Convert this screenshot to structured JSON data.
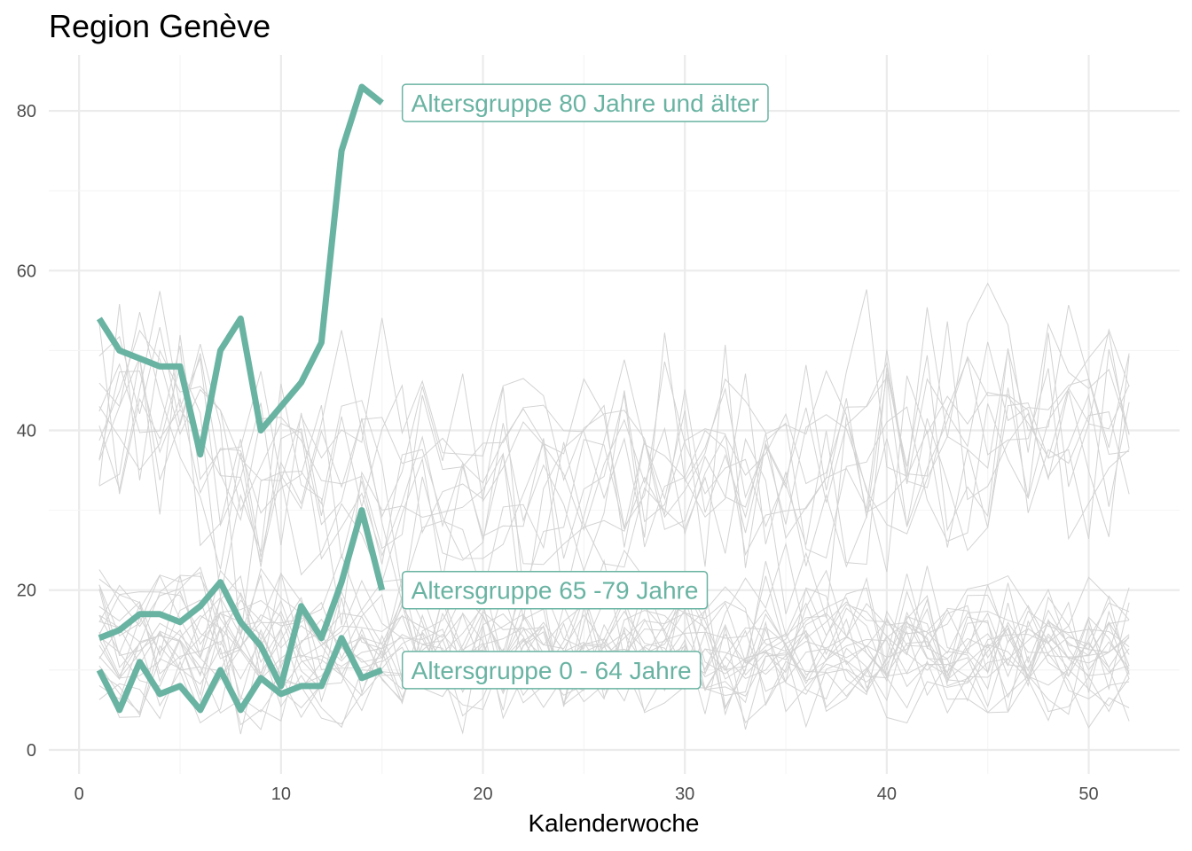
{
  "chart_data": {
    "type": "line",
    "title": "Region Genève",
    "xlabel": "Kalenderwoche",
    "ylabel": "",
    "xlim": [
      -1.5,
      54.5
    ],
    "ylim": [
      -3,
      87
    ],
    "xticks": [
      0,
      10,
      20,
      30,
      40,
      50
    ],
    "yticks": [
      0,
      20,
      40,
      60,
      80
    ],
    "grid": true,
    "legend": "none",
    "colors": {
      "highlight": "#69b3a2",
      "background_lines": "#d3d3d3",
      "grid_major": "#ebebeb",
      "grid_minor": "#f4f4f4"
    },
    "highlight_series": [
      {
        "name": "Altersgruppe 80 Jahre und älter",
        "x": [
          1,
          2,
          3,
          4,
          5,
          6,
          7,
          8,
          9,
          10,
          11,
          12,
          13,
          14,
          15
        ],
        "values": [
          54,
          50,
          49,
          48,
          48,
          37,
          50,
          54,
          40,
          43,
          46,
          51,
          75,
          83,
          81
        ]
      },
      {
        "name": "Altersgruppe 65 -79 Jahre",
        "x": [
          1,
          2,
          3,
          4,
          5,
          6,
          7,
          8,
          9,
          10,
          11,
          12,
          13,
          14,
          15
        ],
        "values": [
          14,
          15,
          17,
          17,
          16,
          18,
          21,
          16,
          13,
          8,
          18,
          14,
          21,
          30,
          20
        ]
      },
      {
        "name": "Altersgruppe 0 - 64 Jahre",
        "x": [
          1,
          2,
          3,
          4,
          5,
          6,
          7,
          8,
          9,
          10,
          11,
          12,
          13,
          14,
          15
        ],
        "values": [
          10,
          5,
          11,
          7,
          8,
          5,
          10,
          5,
          9,
          7,
          8,
          8,
          14,
          9,
          10
        ]
      }
    ],
    "background_series": {
      "weeks": 52,
      "groups": [
        {
          "count": 11,
          "mean": 36,
          "spread": 7
        },
        {
          "count": 11,
          "mean": 15,
          "spread": 4
        },
        {
          "count": 11,
          "mean": 11,
          "spread": 3.5
        }
      ]
    }
  }
}
